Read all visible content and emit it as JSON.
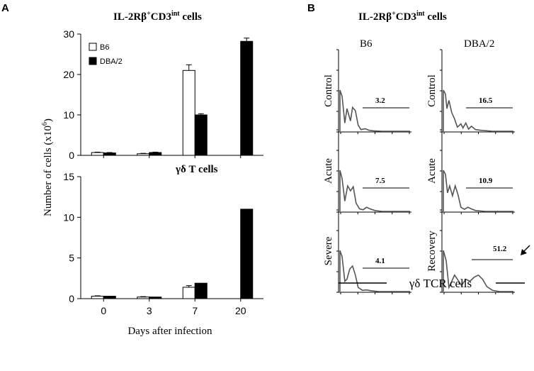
{
  "panel_a": {
    "letter": "A",
    "title_main": "IL-2Rβ",
    "title_sup1": "+",
    "title_mid": "CD3",
    "title_sup2": "int",
    "title_end": " cells",
    "ylabel_pre": "Number of cells (x10",
    "ylabel_sup": "6",
    "ylabel_post": ")",
    "xlabel": "Days after infection",
    "legend": [
      {
        "name": "B6",
        "color": "#ffffff"
      },
      {
        "name": "DBA/2",
        "color": "#000000"
      }
    ]
  },
  "chart_data": [
    {
      "type": "bar",
      "title": "IL-2Rβ+CD3int cells",
      "categories": [
        "0",
        "3",
        "7",
        "20"
      ],
      "ylim": [
        0,
        30
      ],
      "yticks": [
        "0",
        "10",
        "20",
        "30"
      ],
      "series": [
        {
          "name": "B6",
          "values": [
            0.7,
            0.4,
            21,
            null
          ],
          "errors": [
            0.1,
            0.1,
            1.4,
            null
          ]
        },
        {
          "name": "DBA/2",
          "values": [
            0.6,
            0.7,
            10,
            28.2
          ],
          "errors": [
            0.1,
            0.1,
            0.3,
            0.8
          ]
        }
      ]
    },
    {
      "type": "bar",
      "title": "γδ T cells",
      "categories": [
        "0",
        "3",
        "7",
        "20"
      ],
      "ylim": [
        0,
        15
      ],
      "yticks": [
        "0",
        "5",
        "10",
        "15"
      ],
      "series": [
        {
          "name": "B6",
          "values": [
            0.3,
            0.2,
            1.4,
            null
          ],
          "errors": [
            0.05,
            0.05,
            0.2,
            null
          ]
        },
        {
          "name": "DBA/2",
          "values": [
            0.3,
            0.2,
            1.9,
            11
          ]
        }
      ],
      "xlabel": "Days after infection"
    }
  ],
  "panel_b": {
    "letter": "B",
    "title_main": "IL-2Rβ",
    "title_sup1": "+",
    "title_mid": "CD3",
    "title_sup2": "int",
    "title_end": " cells",
    "col_headers": [
      "B6",
      "DBA/2"
    ],
    "xlabel": "γδ TCR cells",
    "histograms": [
      {
        "col": 0,
        "row": 0,
        "label": "Control",
        "value": "3.2"
      },
      {
        "col": 0,
        "row": 1,
        "label": "Acute",
        "value": "7.5"
      },
      {
        "col": 0,
        "row": 2,
        "label": "Severe",
        "value": "4.1"
      },
      {
        "col": 1,
        "row": 0,
        "label": "Control",
        "value": "16.5"
      },
      {
        "col": 1,
        "row": 1,
        "label": "Acute",
        "value": "10.9"
      },
      {
        "col": 1,
        "row": 2,
        "label": "Recovery",
        "value": "51.2"
      }
    ]
  }
}
